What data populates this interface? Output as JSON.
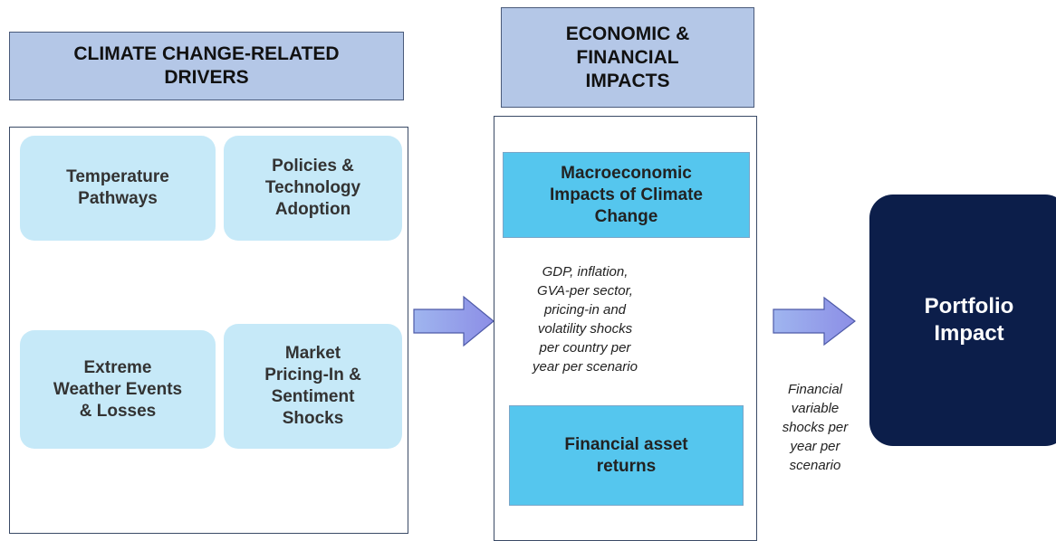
{
  "header_left": {
    "title": [
      "CLIMATE CHANGE-RELATED",
      "DRIVERS"
    ]
  },
  "drivers": [
    {
      "label": [
        "Temperature",
        "Pathways"
      ]
    },
    {
      "label": [
        "Policies &",
        "Technology",
        "Adoption"
      ]
    },
    {
      "label": [
        "Extreme",
        "Weather Events",
        "& Losses"
      ]
    },
    {
      "label": [
        "Market",
        "Pricing-In &",
        "Sentiment",
        "Shocks"
      ]
    }
  ],
  "header_middle": {
    "title": [
      "ECONOMIC &",
      "FINANCIAL",
      "IMPACTS"
    ]
  },
  "macro": {
    "label": [
      "Macroeconomic",
      "Impacts of Climate",
      "Change"
    ]
  },
  "macro_note": [
    "GDP, inflation,",
    "GVA-per sector,",
    "pricing-in and",
    "volatility shocks",
    "per country per",
    "year per scenario"
  ],
  "financial": {
    "label": [
      "Financial asset",
      "returns"
    ]
  },
  "shock_note": [
    "Financial",
    "variable",
    "shocks per",
    "year per",
    "scenario"
  ],
  "portfolio": {
    "label": [
      "Portfolio",
      "Impact"
    ]
  }
}
